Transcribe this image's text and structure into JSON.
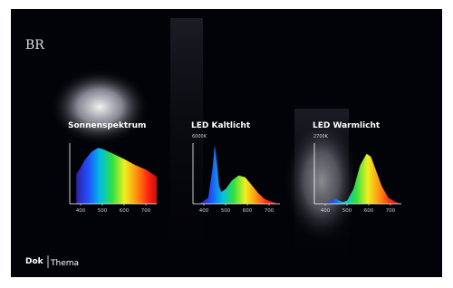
{
  "logo": "BR",
  "show": {
    "left": "Dok",
    "right": "Thema"
  },
  "chart_data": [
    {
      "type": "area",
      "title": "Sonnenspektrum",
      "x": [
        380,
        400,
        420,
        450,
        480,
        500,
        550,
        600,
        650,
        700,
        750
      ],
      "values": [
        50,
        62,
        75,
        88,
        95,
        93,
        85,
        76,
        66,
        58,
        46
      ],
      "xlim": [
        350,
        750
      ],
      "ylim": [
        0,
        100
      ],
      "xticks": [
        400,
        500,
        600,
        700
      ]
    },
    {
      "type": "area",
      "title": "LED Kaltlicht",
      "subtitle": "6000K",
      "x": [
        380,
        420,
        440,
        450,
        460,
        470,
        480,
        500,
        530,
        560,
        590,
        620,
        650,
        680,
        700,
        730
      ],
      "values": [
        0,
        10,
        60,
        100,
        70,
        30,
        20,
        25,
        40,
        48,
        45,
        32,
        18,
        8,
        5,
        2
      ],
      "xlim": [
        350,
        750
      ],
      "ylim": [
        0,
        100
      ],
      "xticks": [
        400,
        500,
        600,
        700
      ]
    },
    {
      "type": "area",
      "title": "LED Warmlicht",
      "subtitle": "2700K",
      "x": [
        380,
        420,
        440,
        450,
        460,
        480,
        500,
        530,
        560,
        590,
        610,
        630,
        660,
        690,
        720,
        740
      ],
      "values": [
        0,
        3,
        7,
        8,
        6,
        3,
        5,
        25,
        65,
        85,
        80,
        60,
        30,
        10,
        4,
        1
      ],
      "xlim": [
        350,
        750
      ],
      "ylim": [
        0,
        100
      ],
      "xticks": [
        400,
        500,
        600,
        700
      ]
    }
  ]
}
